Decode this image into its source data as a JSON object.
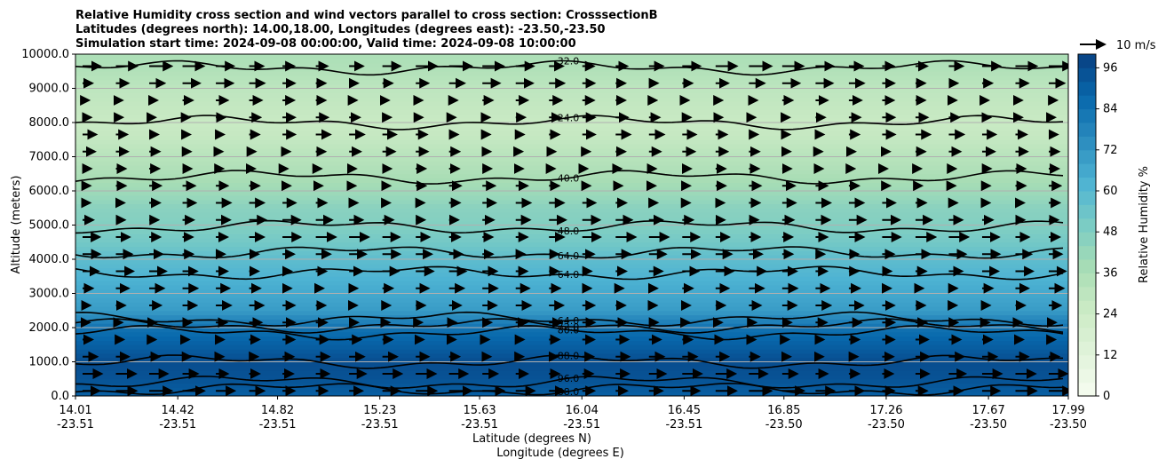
{
  "chart_data": {
    "type": "heatmap",
    "title_lines": [
      "Relative Humidity cross section and wind vectors parallel to cross section: CrosssectionB",
      "Latitudes (degrees north): 14.00,18.00, Longitudes (degrees east): -23.50,-23.50",
      "Simulation start time: 2024-09-08 00:00:00, Valid time: 2024-09-08 10:00:00"
    ],
    "xlabel_lat": "Latitude (degrees N)",
    "xlabel_lon": "Longitude (degrees E)",
    "ylabel": "Altitude (meters)",
    "colorbar_label": "Relative Humidity %",
    "quiver_key_label": "10 m/s",
    "x_ticks": [
      {
        "lat": "14.01",
        "lon": "-23.51",
        "value": 14.01
      },
      {
        "lat": "14.42",
        "lon": "-23.51",
        "value": 14.42
      },
      {
        "lat": "14.82",
        "lon": "-23.51",
        "value": 14.82
      },
      {
        "lat": "15.23",
        "lon": "-23.51",
        "value": 15.23
      },
      {
        "lat": "15.63",
        "lon": "-23.51",
        "value": 15.63
      },
      {
        "lat": "16.04",
        "lon": "-23.51",
        "value": 16.04
      },
      {
        "lat": "16.45",
        "lon": "-23.51",
        "value": 16.45
      },
      {
        "lat": "16.85",
        "lon": "-23.50",
        "value": 16.85
      },
      {
        "lat": "17.26",
        "lon": "-23.50",
        "value": 17.26
      },
      {
        "lat": "17.67",
        "lon": "-23.50",
        "value": 17.67
      },
      {
        "lat": "17.99",
        "lon": "-23.50",
        "value": 17.99
      }
    ],
    "xlim": [
      14.01,
      17.99
    ],
    "y_ticks": [
      "0.0",
      "1000.0",
      "2000.0",
      "3000.0",
      "4000.0",
      "5000.0",
      "6000.0",
      "7000.0",
      "8000.0",
      "9000.0",
      "10000.0"
    ],
    "ylim": [
      0,
      10000
    ],
    "colorbar_ticks": [
      "0",
      "12",
      "24",
      "36",
      "48",
      "60",
      "72",
      "84",
      "96"
    ],
    "colorbar_range": [
      0,
      100
    ],
    "grid": "horizontal",
    "rh_profile": {
      "altitude_m": [
        0,
        500,
        1000,
        1500,
        2000,
        2500,
        3000,
        3500,
        4000,
        4500,
        5000,
        5500,
        6000,
        6500,
        7000,
        7500,
        8000,
        8500,
        9000,
        9500,
        10000
      ],
      "rh_percent": [
        90,
        94,
        96,
        90,
        84,
        70,
        66,
        62,
        58,
        52,
        48,
        46,
        40,
        36,
        32,
        28,
        26,
        28,
        30,
        34,
        36
      ]
    },
    "contours": [
      {
        "level": "88.0",
        "altitude_m": 200
      },
      {
        "level": "96.0",
        "altitude_m": 400
      },
      {
        "level": "88.0",
        "altitude_m": 1000
      },
      {
        "level": "80.0",
        "altitude_m": 1850
      },
      {
        "level": "72.0",
        "altitude_m": 2050
      },
      {
        "level": "64.0",
        "altitude_m": 2250
      },
      {
        "level": "64.0",
        "altitude_m": 3600
      },
      {
        "level": "64.0",
        "altitude_m": 4200
      },
      {
        "level": "48.0",
        "altitude_m": 4950
      },
      {
        "level": "40.0",
        "altitude_m": 6400
      },
      {
        "level": "24.0",
        "altitude_m": 8000
      },
      {
        "level": "32.0",
        "altitude_m": 9600
      }
    ],
    "wind": {
      "altitude_m": [
        150,
        650,
        1150,
        1650,
        2150,
        2650,
        3150,
        3650,
        4150,
        4650,
        5150,
        5650,
        6150,
        6650,
        7150,
        7650,
        8150,
        8650,
        9150,
        9650
      ],
      "u_ms": [
        9,
        8,
        6,
        5,
        5,
        6,
        6,
        7,
        7,
        8,
        7,
        6,
        5,
        4,
        5,
        6,
        5,
        5,
        7,
        9
      ]
    }
  }
}
